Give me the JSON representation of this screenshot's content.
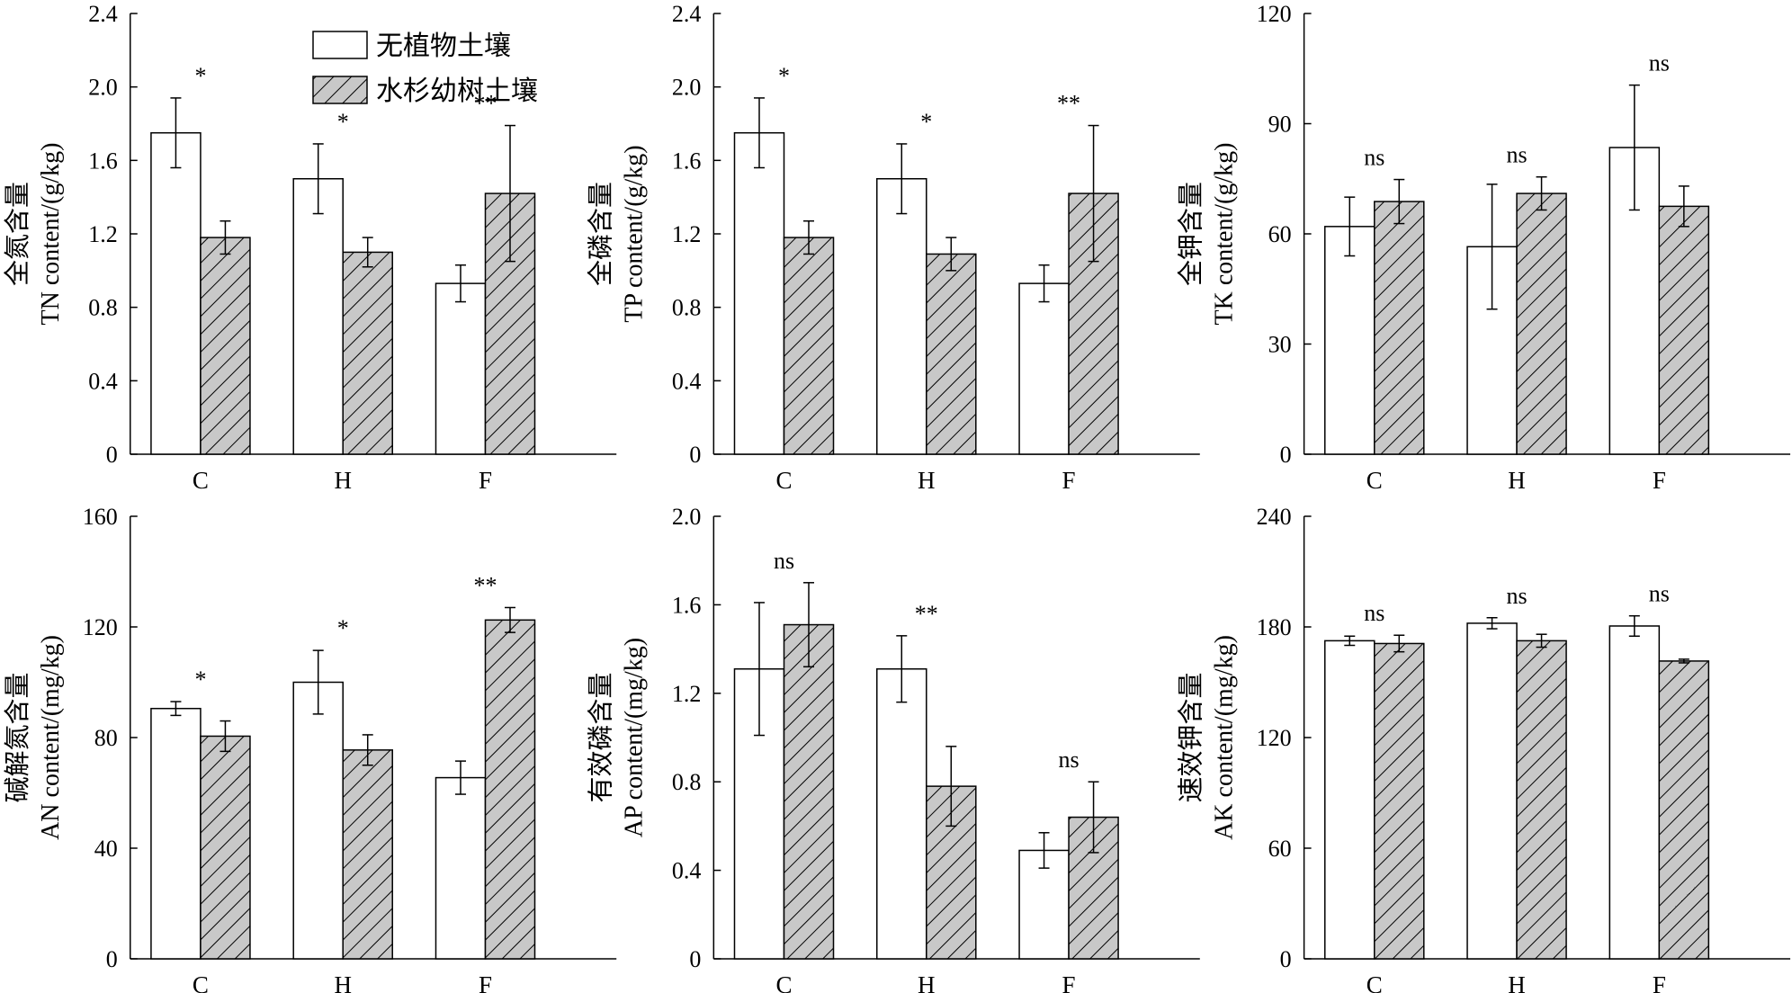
{
  "legend": {
    "items": [
      {
        "label": "无植物土壤",
        "fill": "white"
      },
      {
        "label": "水杉幼树土壤",
        "fill": "hatch"
      }
    ]
  },
  "colors": {
    "hatch_fill": "#c8c8c8",
    "stroke": "#000000",
    "plain_fill": "#ffffff"
  },
  "chart_data": [
    {
      "type": "bar",
      "ylabel_cn": "全氮含量",
      "ylabel_en": "TN content/(g/kg)",
      "categories": [
        "C",
        "H",
        "F"
      ],
      "ylim": [
        0,
        2.4
      ],
      "yticks": [
        "0",
        "0.4",
        "0.8",
        "1.2",
        "1.6",
        "2.0",
        "2.4"
      ],
      "series": [
        {
          "name": "无植物土壤",
          "values": [
            1.75,
            1.5,
            0.93
          ],
          "errors": [
            0.19,
            0.19,
            0.1
          ]
        },
        {
          "name": "水杉幼树土壤",
          "values": [
            1.18,
            1.1,
            1.42
          ],
          "errors": [
            0.09,
            0.08,
            0.37
          ]
        }
      ],
      "significance": [
        "*",
        "*",
        "**"
      ]
    },
    {
      "type": "bar",
      "ylabel_cn": "全磷含量",
      "ylabel_en": "TP content/(g/kg)",
      "categories": [
        "C",
        "H",
        "F"
      ],
      "ylim": [
        0,
        2.4
      ],
      "yticks": [
        "0",
        "0.4",
        "0.8",
        "1.2",
        "1.6",
        "2.0",
        "2.4"
      ],
      "series": [
        {
          "name": "无植物土壤",
          "values": [
            1.75,
            1.5,
            0.93
          ],
          "errors": [
            0.19,
            0.19,
            0.1
          ]
        },
        {
          "name": "水杉幼树土壤",
          "values": [
            1.18,
            1.09,
            1.42
          ],
          "errors": [
            0.09,
            0.09,
            0.37
          ]
        }
      ],
      "significance": [
        "*",
        "*",
        "**"
      ]
    },
    {
      "type": "bar",
      "ylabel_cn": "全钾含量",
      "ylabel_en": "TK content/(g/kg)",
      "categories": [
        "C",
        "H",
        "F"
      ],
      "ylim": [
        0,
        120
      ],
      "yticks": [
        "0",
        "30",
        "60",
        "90",
        "120"
      ],
      "series": [
        {
          "name": "无植物土壤",
          "values": [
            62,
            56.5,
            83.5
          ],
          "errors": [
            8,
            17,
            17
          ]
        },
        {
          "name": "水杉幼树土壤",
          "values": [
            68.8,
            71,
            67.5
          ],
          "errors": [
            6,
            4.5,
            5.5
          ]
        }
      ],
      "significance": [
        "ns",
        "ns",
        "ns"
      ]
    },
    {
      "type": "bar",
      "ylabel_cn": "碱解氮含量",
      "ylabel_en": "AN content/(mg/kg)",
      "categories": [
        "C",
        "H",
        "F"
      ],
      "ylim": [
        0,
        160
      ],
      "yticks": [
        "0",
        "40",
        "80",
        "120",
        "160"
      ],
      "series": [
        {
          "name": "无植物土壤",
          "values": [
            90.5,
            100,
            65.5
          ],
          "errors": [
            2.5,
            11.5,
            6
          ]
        },
        {
          "name": "水杉幼树土壤",
          "values": [
            80.5,
            75.5,
            122.5
          ],
          "errors": [
            5.5,
            5.5,
            4.5
          ]
        }
      ],
      "significance": [
        "*",
        "*",
        "**"
      ]
    },
    {
      "type": "bar",
      "ylabel_cn": "有效磷含量",
      "ylabel_en": "AP content/(mg/kg)",
      "categories": [
        "C",
        "H",
        "F"
      ],
      "ylim": [
        0,
        2.0
      ],
      "yticks": [
        "0",
        "0.4",
        "0.8",
        "1.2",
        "1.6",
        "2.0"
      ],
      "series": [
        {
          "name": "无植物土壤",
          "values": [
            1.31,
            1.31,
            0.49
          ],
          "errors": [
            0.3,
            0.15,
            0.08
          ]
        },
        {
          "name": "水杉幼树土壤",
          "values": [
            1.51,
            0.78,
            0.64
          ],
          "errors": [
            0.19,
            0.18,
            0.16
          ]
        }
      ],
      "significance": [
        "ns",
        "**",
        "ns"
      ]
    },
    {
      "type": "bar",
      "ylabel_cn": "速效钾含量",
      "ylabel_en": "AK content/(mg/kg)",
      "categories": [
        "C",
        "H",
        "F"
      ],
      "ylim": [
        0,
        240
      ],
      "yticks": [
        "0",
        "60",
        "120",
        "180",
        "240"
      ],
      "series": [
        {
          "name": "无植物土壤",
          "values": [
            172.5,
            182,
            180.5
          ],
          "errors": [
            2.5,
            3,
            5.5
          ]
        },
        {
          "name": "水杉幼树土壤",
          "values": [
            171,
            172.5,
            161.5
          ],
          "errors": [
            4.5,
            3.5,
            1
          ]
        }
      ],
      "significance": [
        "ns",
        "ns",
        "ns"
      ]
    }
  ]
}
